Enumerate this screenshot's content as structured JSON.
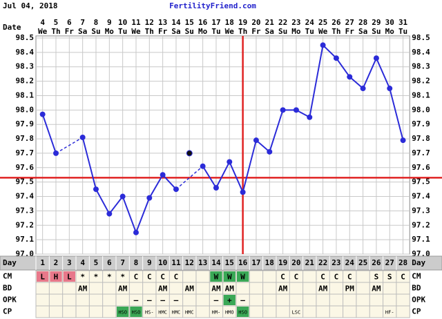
{
  "header": {
    "date": "Jul 04, 2018",
    "site": "FertilityFriend.com"
  },
  "chart_data": {
    "type": "line",
    "date_label": "Date",
    "dates": [
      4,
      5,
      6,
      7,
      8,
      9,
      10,
      11,
      12,
      13,
      14,
      15,
      16,
      17,
      18,
      19,
      20,
      21,
      22,
      23,
      24,
      25,
      26,
      27,
      28,
      29,
      30,
      31
    ],
    "weekdays": [
      "We",
      "Th",
      "Fr",
      "Sa",
      "Su",
      "Mo",
      "Tu",
      "We",
      "Th",
      "Fr",
      "Sa",
      "Su",
      "Mo",
      "Tu",
      "We",
      "Th",
      "Fr",
      "Sa",
      "Su",
      "Mo",
      "Tu",
      "We",
      "Th",
      "Fr",
      "Sa",
      "Su",
      "Mo",
      "Tu"
    ],
    "day_label": "Day",
    "categories": [
      1,
      2,
      3,
      4,
      5,
      6,
      7,
      8,
      9,
      10,
      11,
      12,
      13,
      14,
      15,
      16,
      17,
      18,
      19,
      20,
      21,
      22,
      23,
      24,
      25,
      26,
      27,
      28
    ],
    "values": [
      97.97,
      97.7,
      null,
      97.81,
      97.45,
      97.28,
      97.4,
      97.15,
      97.39,
      97.55,
      97.45,
      null,
      97.61,
      97.46,
      97.64,
      97.43,
      97.79,
      97.71,
      98.0,
      98.0,
      97.95,
      98.45,
      98.36,
      98.23,
      98.15,
      98.36,
      98.15,
      97.79
    ],
    "discarded_values": [
      null,
      null,
      null,
      null,
      null,
      null,
      null,
      null,
      null,
      null,
      null,
      97.7,
      null,
      null,
      null,
      null,
      null,
      null,
      null,
      null,
      null,
      null,
      null,
      null,
      null,
      null,
      null,
      null
    ],
    "color": "#2b2bd8",
    "discarded_color": "#111111",
    "coverline": 97.53,
    "ovulation_day": 16,
    "marker_color": "#e02222",
    "ylim": [
      97.0,
      98.5
    ],
    "yticks": [
      {
        "value": 97.0,
        "label": "97.0"
      },
      97.1,
      97.2,
      97.3,
      97.4,
      97.5,
      97.6,
      97.7,
      97.8,
      97.9,
      {
        "value": 98.0,
        "label": "98.0"
      },
      98.1,
      98.2,
      98.3,
      98.4,
      98.5
    ],
    "grid": true,
    "rows": [
      {
        "label": "CM",
        "cells": [
          "L",
          "H",
          "L",
          "*",
          "*",
          "*",
          "*",
          "C",
          "C",
          "C",
          "C",
          null,
          null,
          "W",
          "W",
          "W",
          null,
          null,
          "C",
          "C",
          null,
          "C",
          "C",
          "C",
          null,
          "S",
          "S",
          "C"
        ],
        "highlight": [
          "#e8788a",
          "#e8788a",
          "#e8788a",
          null,
          null,
          null,
          null,
          null,
          null,
          null,
          null,
          null,
          null,
          "#3aa856",
          "#3aa856",
          "#3aa856",
          null,
          null,
          null,
          null,
          null,
          null,
          null,
          null,
          null,
          null,
          null,
          null
        ]
      },
      {
        "label": "BD",
        "cells": [
          null,
          null,
          null,
          "AM",
          null,
          null,
          "AM",
          null,
          null,
          "AM",
          null,
          "AM",
          null,
          "AM",
          "AM",
          null,
          null,
          null,
          "AM",
          null,
          null,
          "AM",
          null,
          "PM",
          null,
          "AM",
          null,
          null
        ],
        "highlight": [
          null,
          null,
          null,
          null,
          null,
          null,
          null,
          null,
          null,
          null,
          null,
          null,
          null,
          null,
          null,
          null,
          null,
          null,
          null,
          null,
          null,
          null,
          null,
          null,
          null,
          null,
          null,
          null
        ]
      },
      {
        "label": "OPK",
        "cells": [
          null,
          null,
          null,
          null,
          null,
          null,
          null,
          "–",
          "–",
          "–",
          "–",
          null,
          null,
          "–",
          "+",
          "–",
          null,
          null,
          null,
          null,
          null,
          null,
          null,
          null,
          null,
          null,
          null,
          null
        ],
        "highlight": [
          null,
          null,
          null,
          null,
          null,
          null,
          null,
          null,
          null,
          null,
          null,
          null,
          null,
          null,
          "#3aa856",
          null,
          null,
          null,
          null,
          null,
          null,
          null,
          null,
          null,
          null,
          null,
          null,
          null
        ]
      },
      {
        "label": "CP",
        "cells": [
          null,
          null,
          null,
          null,
          null,
          null,
          "HSO",
          "HSO",
          "HS-",
          "HMC",
          "HMC",
          "HMC",
          null,
          "HM-",
          "HMO",
          "HSO",
          null,
          null,
          null,
          "LSC",
          null,
          null,
          null,
          null,
          null,
          null,
          "HF-",
          null
        ],
        "highlight": [
          null,
          null,
          null,
          null,
          null,
          null,
          "#3aa856",
          "#3aa856",
          null,
          null,
          null,
          null,
          null,
          null,
          null,
          "#3aa856",
          null,
          null,
          null,
          null,
          null,
          null,
          null,
          null,
          null,
          null,
          null,
          null
        ]
      }
    ]
  }
}
